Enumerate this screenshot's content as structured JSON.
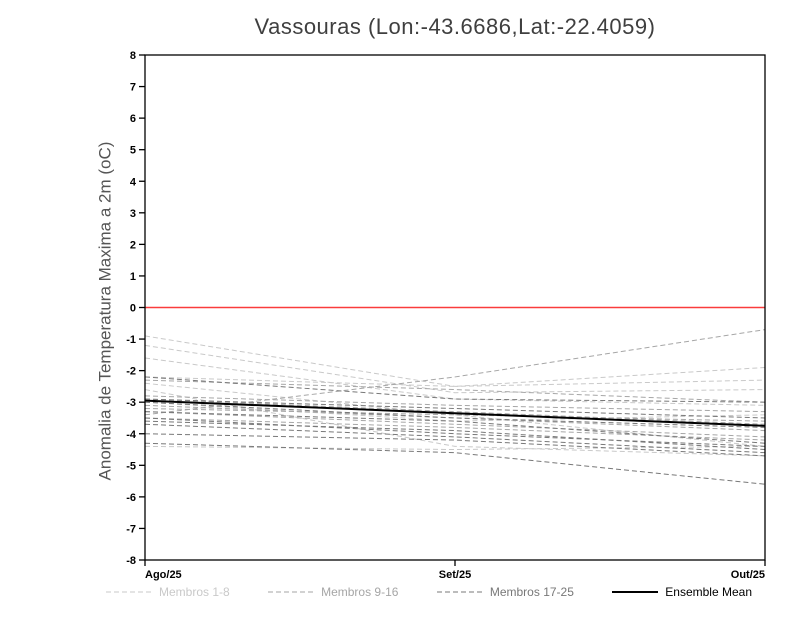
{
  "title": "Vassouras (Lon:-43.6686,Lat:-22.4059)",
  "chart_data": {
    "type": "line",
    "x": [
      "Ago/25",
      "Set/25",
      "Out/25"
    ],
    "ylabel": "Anomalia de Temperatura Maxima a 2m (oC)",
    "ylim": [
      -8,
      8
    ],
    "yticks": [
      -8,
      -7,
      -6,
      -5,
      -4,
      -3,
      -2,
      -1,
      0,
      1,
      2,
      3,
      4,
      5,
      6,
      7,
      8
    ],
    "zero_line_color": "#fa3c3c",
    "frame_color": "#000000",
    "legend": [
      {
        "id": "g1",
        "label": "Membros 1-8",
        "color": "#c9c9c9",
        "style": "dashed"
      },
      {
        "id": "g2",
        "label": "Membros 9-16",
        "color": "#a6a6a6",
        "style": "dashed"
      },
      {
        "id": "g3",
        "label": "Membros 17-25",
        "color": "#787878",
        "style": "dashed"
      },
      {
        "id": "mean",
        "label": "Ensemble Mean",
        "color": "#000000",
        "style": "solid"
      }
    ],
    "series": [
      {
        "group": "g1",
        "values": [
          -0.9,
          -2.5,
          -2.3
        ]
      },
      {
        "group": "g1",
        "values": [
          -1.2,
          -2.7,
          -2.6
        ]
      },
      {
        "group": "g1",
        "values": [
          -1.6,
          -2.9,
          -3.1
        ]
      },
      {
        "group": "g1",
        "values": [
          -2.2,
          -2.5,
          -1.9
        ]
      },
      {
        "group": "g1",
        "values": [
          -2.4,
          -3.4,
          -4.4
        ]
      },
      {
        "group": "g1",
        "values": [
          -2.6,
          -4.4,
          -4.7
        ]
      },
      {
        "group": "g1",
        "values": [
          -3.0,
          -3.6,
          -3.4
        ]
      },
      {
        "group": "g1",
        "values": [
          -4.4,
          -4.5,
          -4.4
        ]
      },
      {
        "group": "g2",
        "values": [
          -2.3,
          -2.6,
          -3.0
        ]
      },
      {
        "group": "g2",
        "values": [
          -2.8,
          -3.1,
          -3.3
        ]
      },
      {
        "group": "g2",
        "values": [
          -2.9,
          -3.3,
          -3.7
        ]
      },
      {
        "group": "g2",
        "values": [
          -3.4,
          -2.2,
          -0.7
        ]
      },
      {
        "group": "g2",
        "values": [
          -3.1,
          -3.5,
          -3.9
        ]
      },
      {
        "group": "g2",
        "values": [
          -3.2,
          -3.4,
          -3.6
        ]
      },
      {
        "group": "g2",
        "values": [
          -3.3,
          -3.7,
          -4.1
        ]
      },
      {
        "group": "g2",
        "values": [
          -3.5,
          -3.8,
          -4.2
        ]
      },
      {
        "group": "g3",
        "values": [
          -2.2,
          -2.9,
          -3.0
        ]
      },
      {
        "group": "g3",
        "values": [
          -2.9,
          -3.2,
          -3.5
        ]
      },
      {
        "group": "g3",
        "values": [
          -3.0,
          -3.5,
          -3.8
        ]
      },
      {
        "group": "g3",
        "values": [
          -3.3,
          -3.6,
          -4.3
        ]
      },
      {
        "group": "g3",
        "values": [
          -3.5,
          -4.0,
          -4.4
        ]
      },
      {
        "group": "g3",
        "values": [
          -3.6,
          -3.9,
          -4.5
        ]
      },
      {
        "group": "g3",
        "values": [
          -3.7,
          -4.1,
          -4.6
        ]
      },
      {
        "group": "g3",
        "values": [
          -4.0,
          -4.2,
          -4.7
        ]
      },
      {
        "group": "g3",
        "values": [
          -4.3,
          -4.6,
          -5.6
        ]
      },
      {
        "group": "mean",
        "values": [
          -2.95,
          -3.35,
          -3.75
        ]
      }
    ]
  }
}
